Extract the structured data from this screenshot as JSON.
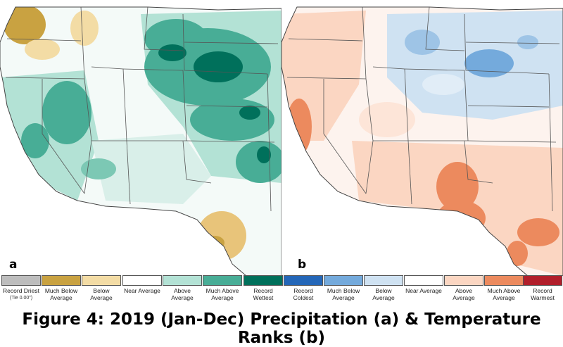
{
  "panels": {
    "a": {
      "label": "a"
    },
    "b": {
      "label": "b"
    }
  },
  "precip_legend": [
    {
      "text": "Record Driest",
      "sub": "(Tie 0.00\")",
      "color": "#bdbdbd"
    },
    {
      "text": "Much Below Average",
      "color": "#c9a241"
    },
    {
      "text": "Below Average",
      "color": "#f3dca5"
    },
    {
      "text": "Near Average",
      "color": "#ffffff"
    },
    {
      "text": "Above Average",
      "color": "#b3e2d5"
    },
    {
      "text": "Much Above Average",
      "color": "#48ad96"
    },
    {
      "text": "Record Wettest",
      "color": "#00705b"
    }
  ],
  "temp_legend": [
    {
      "text": "Record Coldest",
      "color": "#2467b8"
    },
    {
      "text": "Much Below Average",
      "color": "#74aadc"
    },
    {
      "text": "Below Average",
      "color": "#cfe2f2"
    },
    {
      "text": "Near Average",
      "color": "#ffffff"
    },
    {
      "text": "Above Average",
      "color": "#fbd6c2"
    },
    {
      "text": "Much Above Average",
      "color": "#ec8a5e"
    },
    {
      "text": "Record Warmest",
      "color": "#b11f2b"
    }
  ],
  "caption": "Figure 4: 2019 (Jan-Dec) Precipitation (a) & Temperature Ranks (b)"
}
